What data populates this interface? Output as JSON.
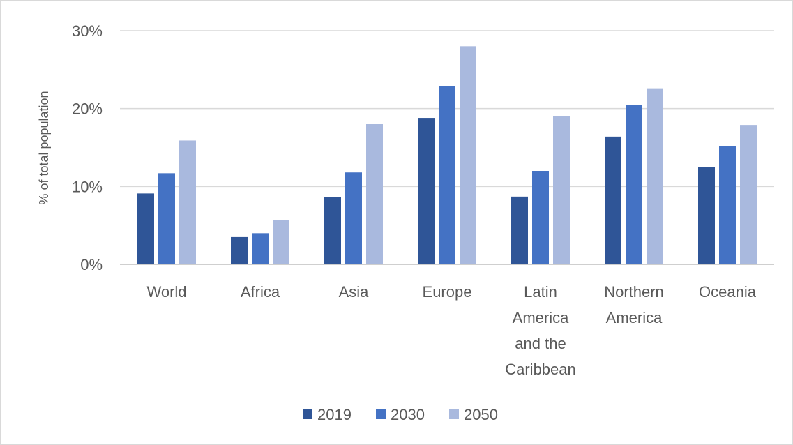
{
  "chart_data": {
    "type": "bar",
    "title": "",
    "xlabel": "",
    "ylabel": "% of total population",
    "ylim": [
      0,
      30
    ],
    "yticks": [
      "0%",
      "10%",
      "20%",
      "30%"
    ],
    "y_tick_values": [
      0,
      10,
      20,
      30
    ],
    "grid": true,
    "legend_position": "bottom",
    "categories": [
      "World",
      "Africa",
      "Asia",
      "Europe",
      "Latin America and the Caribbean",
      "Northern America",
      "Oceania"
    ],
    "category_lines": [
      [
        "World"
      ],
      [
        "Africa"
      ],
      [
        "Asia"
      ],
      [
        "Europe"
      ],
      [
        "Latin",
        "America",
        "and the",
        "Caribbean"
      ],
      [
        "Northern",
        "America"
      ],
      [
        "Oceania"
      ]
    ],
    "series": [
      {
        "name": "2019",
        "color": "#2f5597",
        "values": [
          9.1,
          3.5,
          8.6,
          18.8,
          8.7,
          16.4,
          12.5
        ]
      },
      {
        "name": "2030",
        "color": "#4472c4",
        "values": [
          11.7,
          4.0,
          11.8,
          22.9,
          12.0,
          20.5,
          15.2
        ]
      },
      {
        "name": "2050",
        "color": "#a9b9de",
        "values": [
          15.9,
          5.7,
          18.0,
          28.0,
          19.0,
          22.6,
          17.9
        ]
      }
    ]
  }
}
